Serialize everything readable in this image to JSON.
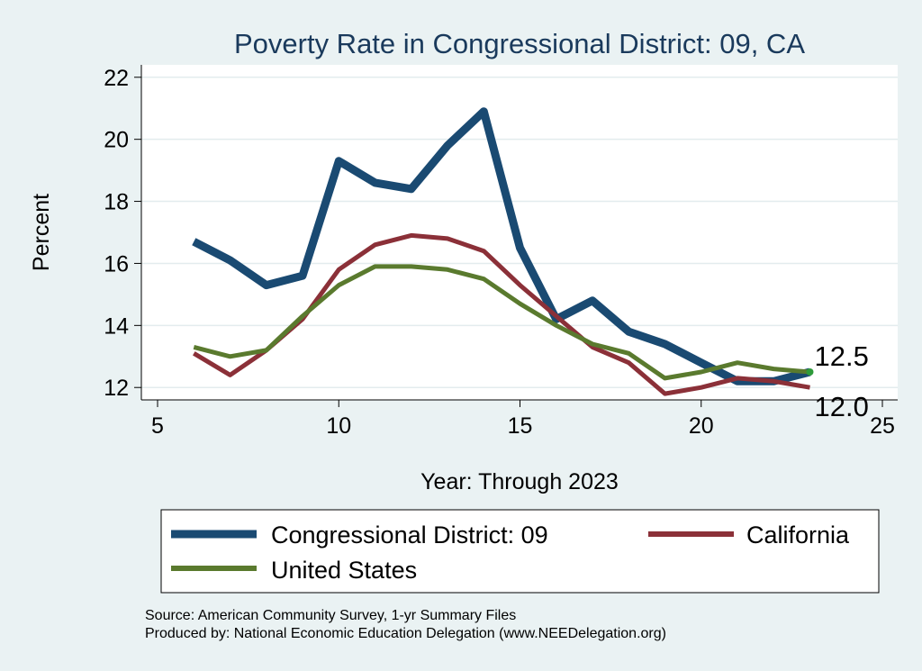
{
  "chart_data": {
    "type": "line",
    "title": "Poverty Rate in Congressional District:  09, CA",
    "xlabel": "Year: Through 2023",
    "ylabel": "Percent",
    "xlim": [
      5,
      25
    ],
    "ylim": [
      11.6,
      22.4
    ],
    "xticks": [
      5,
      10,
      15,
      20,
      25
    ],
    "yticks": [
      12,
      14,
      16,
      18,
      20,
      22
    ],
    "grid": true,
    "legend_position": "bottom",
    "series": [
      {
        "name": "Congressional District:  09",
        "color": "#1a4a72",
        "x": [
          6,
          7,
          8,
          9,
          10,
          11,
          12,
          13,
          14,
          15,
          16,
          17,
          18,
          19,
          20,
          21,
          22,
          23
        ],
        "values": [
          16.7,
          16.1,
          15.3,
          15.6,
          19.3,
          18.6,
          18.4,
          19.8,
          20.9,
          16.5,
          14.2,
          14.8,
          13.8,
          13.4,
          12.8,
          12.2,
          12.2,
          12.5
        ],
        "end_label": "12.5"
      },
      {
        "name": "California",
        "color": "#8b3038",
        "x": [
          6,
          7,
          8,
          9,
          10,
          11,
          12,
          13,
          14,
          15,
          16,
          17,
          18,
          19,
          20,
          21,
          22,
          23
        ],
        "values": [
          13.1,
          12.4,
          13.2,
          14.2,
          15.8,
          16.6,
          16.9,
          16.8,
          16.4,
          15.3,
          14.3,
          13.3,
          12.8,
          11.8,
          12.0,
          12.3,
          12.2,
          12.0
        ],
        "end_label": "12.0"
      },
      {
        "name": "United States",
        "color": "#5a7a2e",
        "x": [
          6,
          7,
          8,
          9,
          10,
          11,
          12,
          13,
          14,
          15,
          16,
          17,
          18,
          19,
          20,
          21,
          22,
          23
        ],
        "values": [
          13.3,
          13.0,
          13.2,
          14.3,
          15.3,
          15.9,
          15.9,
          15.8,
          15.5,
          14.7,
          14.0,
          13.4,
          13.1,
          12.3,
          12.5,
          12.8,
          12.6,
          12.5
        ]
      }
    ]
  },
  "source_line": "Source: American Community Survey, 1-yr Summary Files",
  "producer_line": "Produced by: National Economic Education Delegation (www.NEEDelegation.org)"
}
